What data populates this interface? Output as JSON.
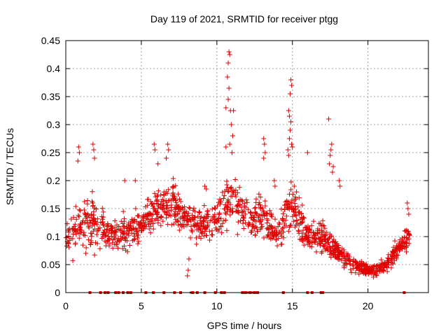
{
  "chart_data": {
    "type": "scatter",
    "title": "Day 119 of 2021, SRMTID for receiver ptgg",
    "xlabel": "GPS time / hours",
    "ylabel": "SRMTID / TECUs",
    "xlim": [
      0,
      24
    ],
    "ylim": [
      0,
      0.45
    ],
    "xticks": [
      0,
      5,
      10,
      15,
      20
    ],
    "xtick_labels": [
      "0",
      "5",
      "10",
      "15",
      "20"
    ],
    "yticks": [
      0,
      0.05,
      0.1,
      0.15,
      0.2,
      0.25,
      0.3,
      0.35,
      0.4,
      0.45
    ],
    "ytick_labels": [
      "0",
      "0.05",
      "0.1",
      "0.15",
      "0.2",
      "0.25",
      "0.3",
      "0.35",
      "0.4",
      "0.45"
    ],
    "grid": true,
    "marker": "+",
    "series_color": "#e00000",
    "x_range": [
      0,
      22.8
    ],
    "envelope": [
      {
        "x": 0.0,
        "center": 0.1,
        "spread": 0.05
      },
      {
        "x": 1.0,
        "center": 0.12,
        "spread": 0.07
      },
      {
        "x": 2.0,
        "center": 0.13,
        "spread": 0.07
      },
      {
        "x": 3.0,
        "center": 0.1,
        "spread": 0.04
      },
      {
        "x": 4.0,
        "center": 0.11,
        "spread": 0.05
      },
      {
        "x": 5.0,
        "center": 0.12,
        "spread": 0.05
      },
      {
        "x": 6.0,
        "center": 0.15,
        "spread": 0.06
      },
      {
        "x": 7.0,
        "center": 0.16,
        "spread": 0.06
      },
      {
        "x": 8.0,
        "center": 0.13,
        "spread": 0.04
      },
      {
        "x": 9.0,
        "center": 0.12,
        "spread": 0.05
      },
      {
        "x": 10.0,
        "center": 0.13,
        "spread": 0.05
      },
      {
        "x": 11.0,
        "center": 0.17,
        "spread": 0.07
      },
      {
        "x": 12.0,
        "center": 0.13,
        "spread": 0.05
      },
      {
        "x": 13.0,
        "center": 0.14,
        "spread": 0.06
      },
      {
        "x": 14.0,
        "center": 0.1,
        "spread": 0.04
      },
      {
        "x": 15.0,
        "center": 0.16,
        "spread": 0.07
      },
      {
        "x": 16.0,
        "center": 0.1,
        "spread": 0.04
      },
      {
        "x": 17.0,
        "center": 0.1,
        "spread": 0.05
      },
      {
        "x": 18.0,
        "center": 0.07,
        "spread": 0.03
      },
      {
        "x": 19.0,
        "center": 0.05,
        "spread": 0.02
      },
      {
        "x": 20.0,
        "center": 0.04,
        "spread": 0.015
      },
      {
        "x": 21.0,
        "center": 0.045,
        "spread": 0.02
      },
      {
        "x": 22.0,
        "center": 0.08,
        "spread": 0.03
      },
      {
        "x": 22.8,
        "center": 0.1,
        "spread": 0.04
      }
    ],
    "spikes": [
      {
        "x": 0.85,
        "y": 0.26
      },
      {
        "x": 0.9,
        "y": 0.25
      },
      {
        "x": 0.8,
        "y": 0.235
      },
      {
        "x": 1.8,
        "y": 0.265
      },
      {
        "x": 1.85,
        "y": 0.255
      },
      {
        "x": 1.9,
        "y": 0.24
      },
      {
        "x": 3.9,
        "y": 0.2
      },
      {
        "x": 4.6,
        "y": 0.2
      },
      {
        "x": 5.85,
        "y": 0.265
      },
      {
        "x": 5.9,
        "y": 0.255
      },
      {
        "x": 6.1,
        "y": 0.23
      },
      {
        "x": 6.75,
        "y": 0.265
      },
      {
        "x": 6.8,
        "y": 0.255
      },
      {
        "x": 6.65,
        "y": 0.24
      },
      {
        "x": 8.05,
        "y": 0.03
      },
      {
        "x": 8.1,
        "y": 0.04
      },
      {
        "x": 8.15,
        "y": 0.06
      },
      {
        "x": 9.2,
        "y": 0.19
      },
      {
        "x": 9.3,
        "y": 0.185
      },
      {
        "x": 10.8,
        "y": 0.43
      },
      {
        "x": 10.85,
        "y": 0.425
      },
      {
        "x": 10.75,
        "y": 0.41
      },
      {
        "x": 10.7,
        "y": 0.385
      },
      {
        "x": 10.8,
        "y": 0.365
      },
      {
        "x": 10.75,
        "y": 0.345
      },
      {
        "x": 10.6,
        "y": 0.33
      },
      {
        "x": 10.9,
        "y": 0.325
      },
      {
        "x": 11.1,
        "y": 0.325
      },
      {
        "x": 10.95,
        "y": 0.3
      },
      {
        "x": 11.05,
        "y": 0.28
      },
      {
        "x": 10.6,
        "y": 0.26
      },
      {
        "x": 10.85,
        "y": 0.265
      },
      {
        "x": 11.0,
        "y": 0.25
      },
      {
        "x": 13.1,
        "y": 0.275
      },
      {
        "x": 13.15,
        "y": 0.265
      },
      {
        "x": 13.2,
        "y": 0.25
      },
      {
        "x": 13.1,
        "y": 0.24
      },
      {
        "x": 13.8,
        "y": 0.2
      },
      {
        "x": 13.85,
        "y": 0.19
      },
      {
        "x": 14.9,
        "y": 0.38
      },
      {
        "x": 14.95,
        "y": 0.37
      },
      {
        "x": 14.85,
        "y": 0.355
      },
      {
        "x": 14.75,
        "y": 0.325
      },
      {
        "x": 14.8,
        "y": 0.315
      },
      {
        "x": 14.9,
        "y": 0.305
      },
      {
        "x": 14.85,
        "y": 0.29
      },
      {
        "x": 14.8,
        "y": 0.275
      },
      {
        "x": 14.95,
        "y": 0.265
      },
      {
        "x": 14.7,
        "y": 0.255
      },
      {
        "x": 14.75,
        "y": 0.245
      },
      {
        "x": 15.0,
        "y": 0.26
      },
      {
        "x": 16.0,
        "y": 0.25
      },
      {
        "x": 17.4,
        "y": 0.31
      },
      {
        "x": 17.6,
        "y": 0.265
      },
      {
        "x": 17.55,
        "y": 0.255
      },
      {
        "x": 17.5,
        "y": 0.245
      },
      {
        "x": 17.45,
        "y": 0.23
      },
      {
        "x": 17.7,
        "y": 0.225
      },
      {
        "x": 17.65,
        "y": 0.215
      },
      {
        "x": 18.1,
        "y": 0.2
      },
      {
        "x": 18.15,
        "y": 0.19
      },
      {
        "x": 22.6,
        "y": 0.16
      },
      {
        "x": 22.65,
        "y": 0.15
      },
      {
        "x": 22.7,
        "y": 0.14
      }
    ],
    "zero_markers_x": [
      1.6,
      2.3,
      2.6,
      2.8,
      3.3,
      3.5,
      3.8,
      4.1,
      4.3,
      5.3,
      5.8,
      6.5,
      7.2,
      7.6,
      8.4,
      8.7,
      9.2,
      9.9,
      10.3,
      10.5,
      11.7,
      11.9,
      12.2,
      12.5,
      12.7,
      14.4,
      16.0,
      16.3,
      16.9,
      17.0,
      22.4
    ],
    "zero_gap_segments": [
      [
        8.2,
        8.5
      ],
      [
        11.6,
        12.7
      ]
    ],
    "n_points": 1400,
    "seed": 119
  }
}
